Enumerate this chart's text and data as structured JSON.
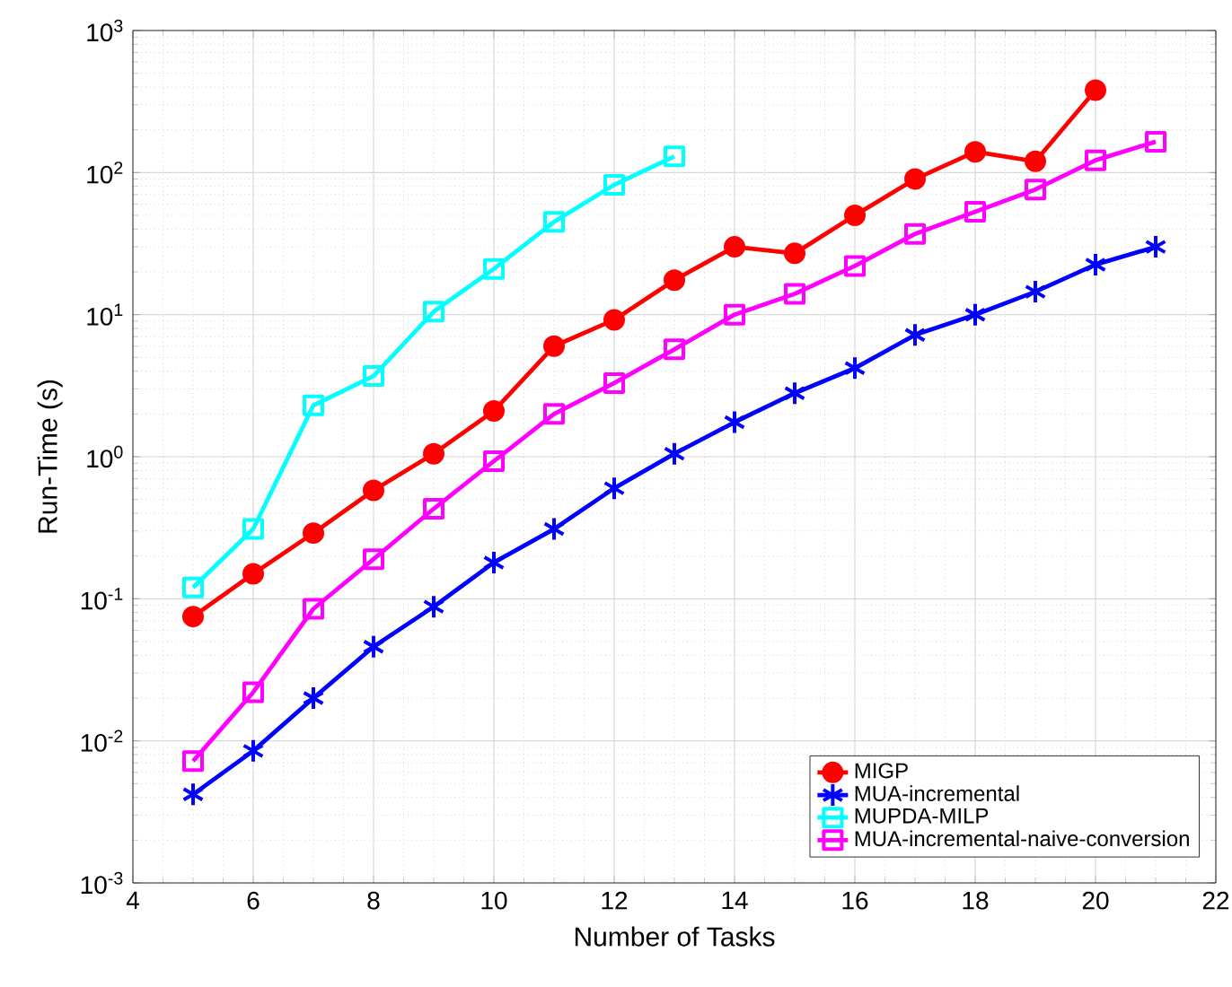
{
  "chart_data": {
    "type": "line",
    "xlabel": "Number of Tasks",
    "ylabel": "Run-Time (s)",
    "xlim": [
      4,
      22
    ],
    "xticks": [
      4,
      6,
      8,
      10,
      12,
      14,
      16,
      18,
      20,
      22
    ],
    "ylim": [
      0.001,
      1000
    ],
    "yticks": [
      {
        "value": 0.001,
        "label": "10$^{-3}$"
      },
      {
        "value": 0.01,
        "label": "10$^{-2}$"
      },
      {
        "value": 0.1,
        "label": "10$^{-1}$"
      },
      {
        "value": 1,
        "label": "10$^{0}$"
      },
      {
        "value": 10,
        "label": "10$^{1}$"
      },
      {
        "value": 100,
        "label": "10$^{2}$"
      },
      {
        "value": 1000,
        "label": "10$^{3}$"
      }
    ],
    "log": "y",
    "grid": true,
    "legend": "bottom right",
    "line_style": "solid",
    "series": [
      {
        "name": "MIGP",
        "color": "#ff0000",
        "marker": "circle",
        "x": [
          5,
          6,
          7,
          8,
          9,
          10,
          11,
          12,
          13,
          14,
          15,
          16,
          17,
          18,
          19,
          20
        ],
        "values": [
          0.075,
          0.15,
          0.29,
          0.58,
          1.05,
          2.1,
          6,
          9.2,
          17.5,
          30,
          27,
          50,
          90,
          140,
          120,
          380
        ]
      },
      {
        "name": "MUA-incremental",
        "color": "#0000ff",
        "marker": "cross",
        "x": [
          5,
          6,
          7,
          8,
          9,
          10,
          11,
          12,
          13,
          14,
          15,
          16,
          17,
          18,
          19,
          20,
          21
        ],
        "values": [
          0.0042,
          0.0085,
          0.02,
          0.046,
          0.088,
          0.18,
          0.31,
          0.6,
          1.05,
          1.75,
          2.8,
          4.2,
          7.2,
          10,
          14.5,
          22.5,
          30
        ]
      },
      {
        "name": "MUPDA-MILP",
        "color": "#00ffff",
        "marker": "square",
        "x": [
          5,
          6,
          7,
          8,
          9,
          10,
          11,
          12,
          13
        ],
        "values": [
          0.12,
          0.31,
          2.3,
          3.7,
          10.5,
          21,
          45,
          82,
          130
        ]
      },
      {
        "name": "MUA-incremental-naive-conversion",
        "color": "#ff00ff",
        "marker": "square",
        "x": [
          5,
          6,
          7,
          8,
          9,
          10,
          11,
          12,
          13,
          14,
          15,
          16,
          17,
          18,
          19,
          20,
          21
        ],
        "values": [
          0.0072,
          0.022,
          0.085,
          0.19,
          0.43,
          0.93,
          2,
          3.3,
          5.7,
          10,
          14,
          22,
          37,
          53,
          76,
          122,
          165
        ]
      }
    ]
  }
}
